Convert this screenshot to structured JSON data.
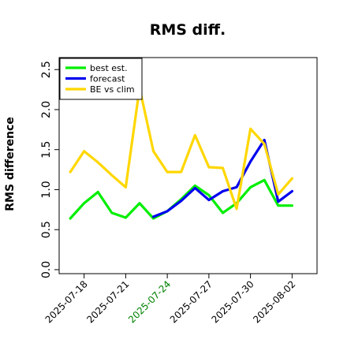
{
  "chart_data": {
    "type": "line",
    "title": "RMS diff.",
    "ylabel": "RMS difference",
    "xlabel": "",
    "ylim": [
      -0.05,
      2.65
    ],
    "y_ticks": [
      0.0,
      0.5,
      1.0,
      1.5,
      2.0,
      2.5
    ],
    "y_tick_labels": [
      "0.0",
      "0.5",
      "1.0",
      "1.5",
      "2.0",
      "2.5"
    ],
    "x_tick_labels": [
      "2025-07-18",
      "2025-07-21",
      "2025-07-24",
      "2025-07-27",
      "2025-07-30",
      "2025-08-02"
    ],
    "x_tick_colors": [
      "#000000",
      "#000000",
      "#008000",
      "#000000",
      "#000000",
      "#000000"
    ],
    "x_tick_positions": [
      1,
      4,
      7,
      10,
      13,
      16
    ],
    "xlim": [
      -0.8,
      17.8
    ],
    "grid": false,
    "legend_position": "top-left",
    "series": [
      {
        "name": "best est.",
        "color": "#00ee00",
        "x": [
          0,
          1,
          2,
          3,
          4,
          5,
          6,
          7,
          8,
          9,
          10,
          11,
          12,
          13,
          14,
          15,
          16
        ],
        "values": [
          0.64,
          0.83,
          0.97,
          0.71,
          0.65,
          0.83,
          0.64,
          0.73,
          0.88,
          1.05,
          0.93,
          0.71,
          0.83,
          1.03,
          1.12,
          0.8,
          0.8
        ]
      },
      {
        "name": "forecast",
        "color": "#0000ee",
        "x": [
          6,
          7,
          8,
          9,
          10,
          11,
          12,
          13,
          14,
          15,
          16
        ],
        "values": [
          0.66,
          0.73,
          0.86,
          1.02,
          0.87,
          0.98,
          1.03,
          1.35,
          1.62,
          0.85,
          0.98
        ]
      },
      {
        "name": "BE vs clim",
        "color": "#ffd700",
        "x": [
          0,
          1,
          2,
          3,
          4,
          5,
          6,
          7,
          8,
          9,
          10,
          11,
          12,
          13,
          14,
          15,
          16
        ],
        "values": [
          1.22,
          1.48,
          1.34,
          1.18,
          1.03,
          2.27,
          1.48,
          1.22,
          1.22,
          1.68,
          1.28,
          1.27,
          0.76,
          1.76,
          1.57,
          0.94,
          1.14
        ]
      }
    ]
  }
}
